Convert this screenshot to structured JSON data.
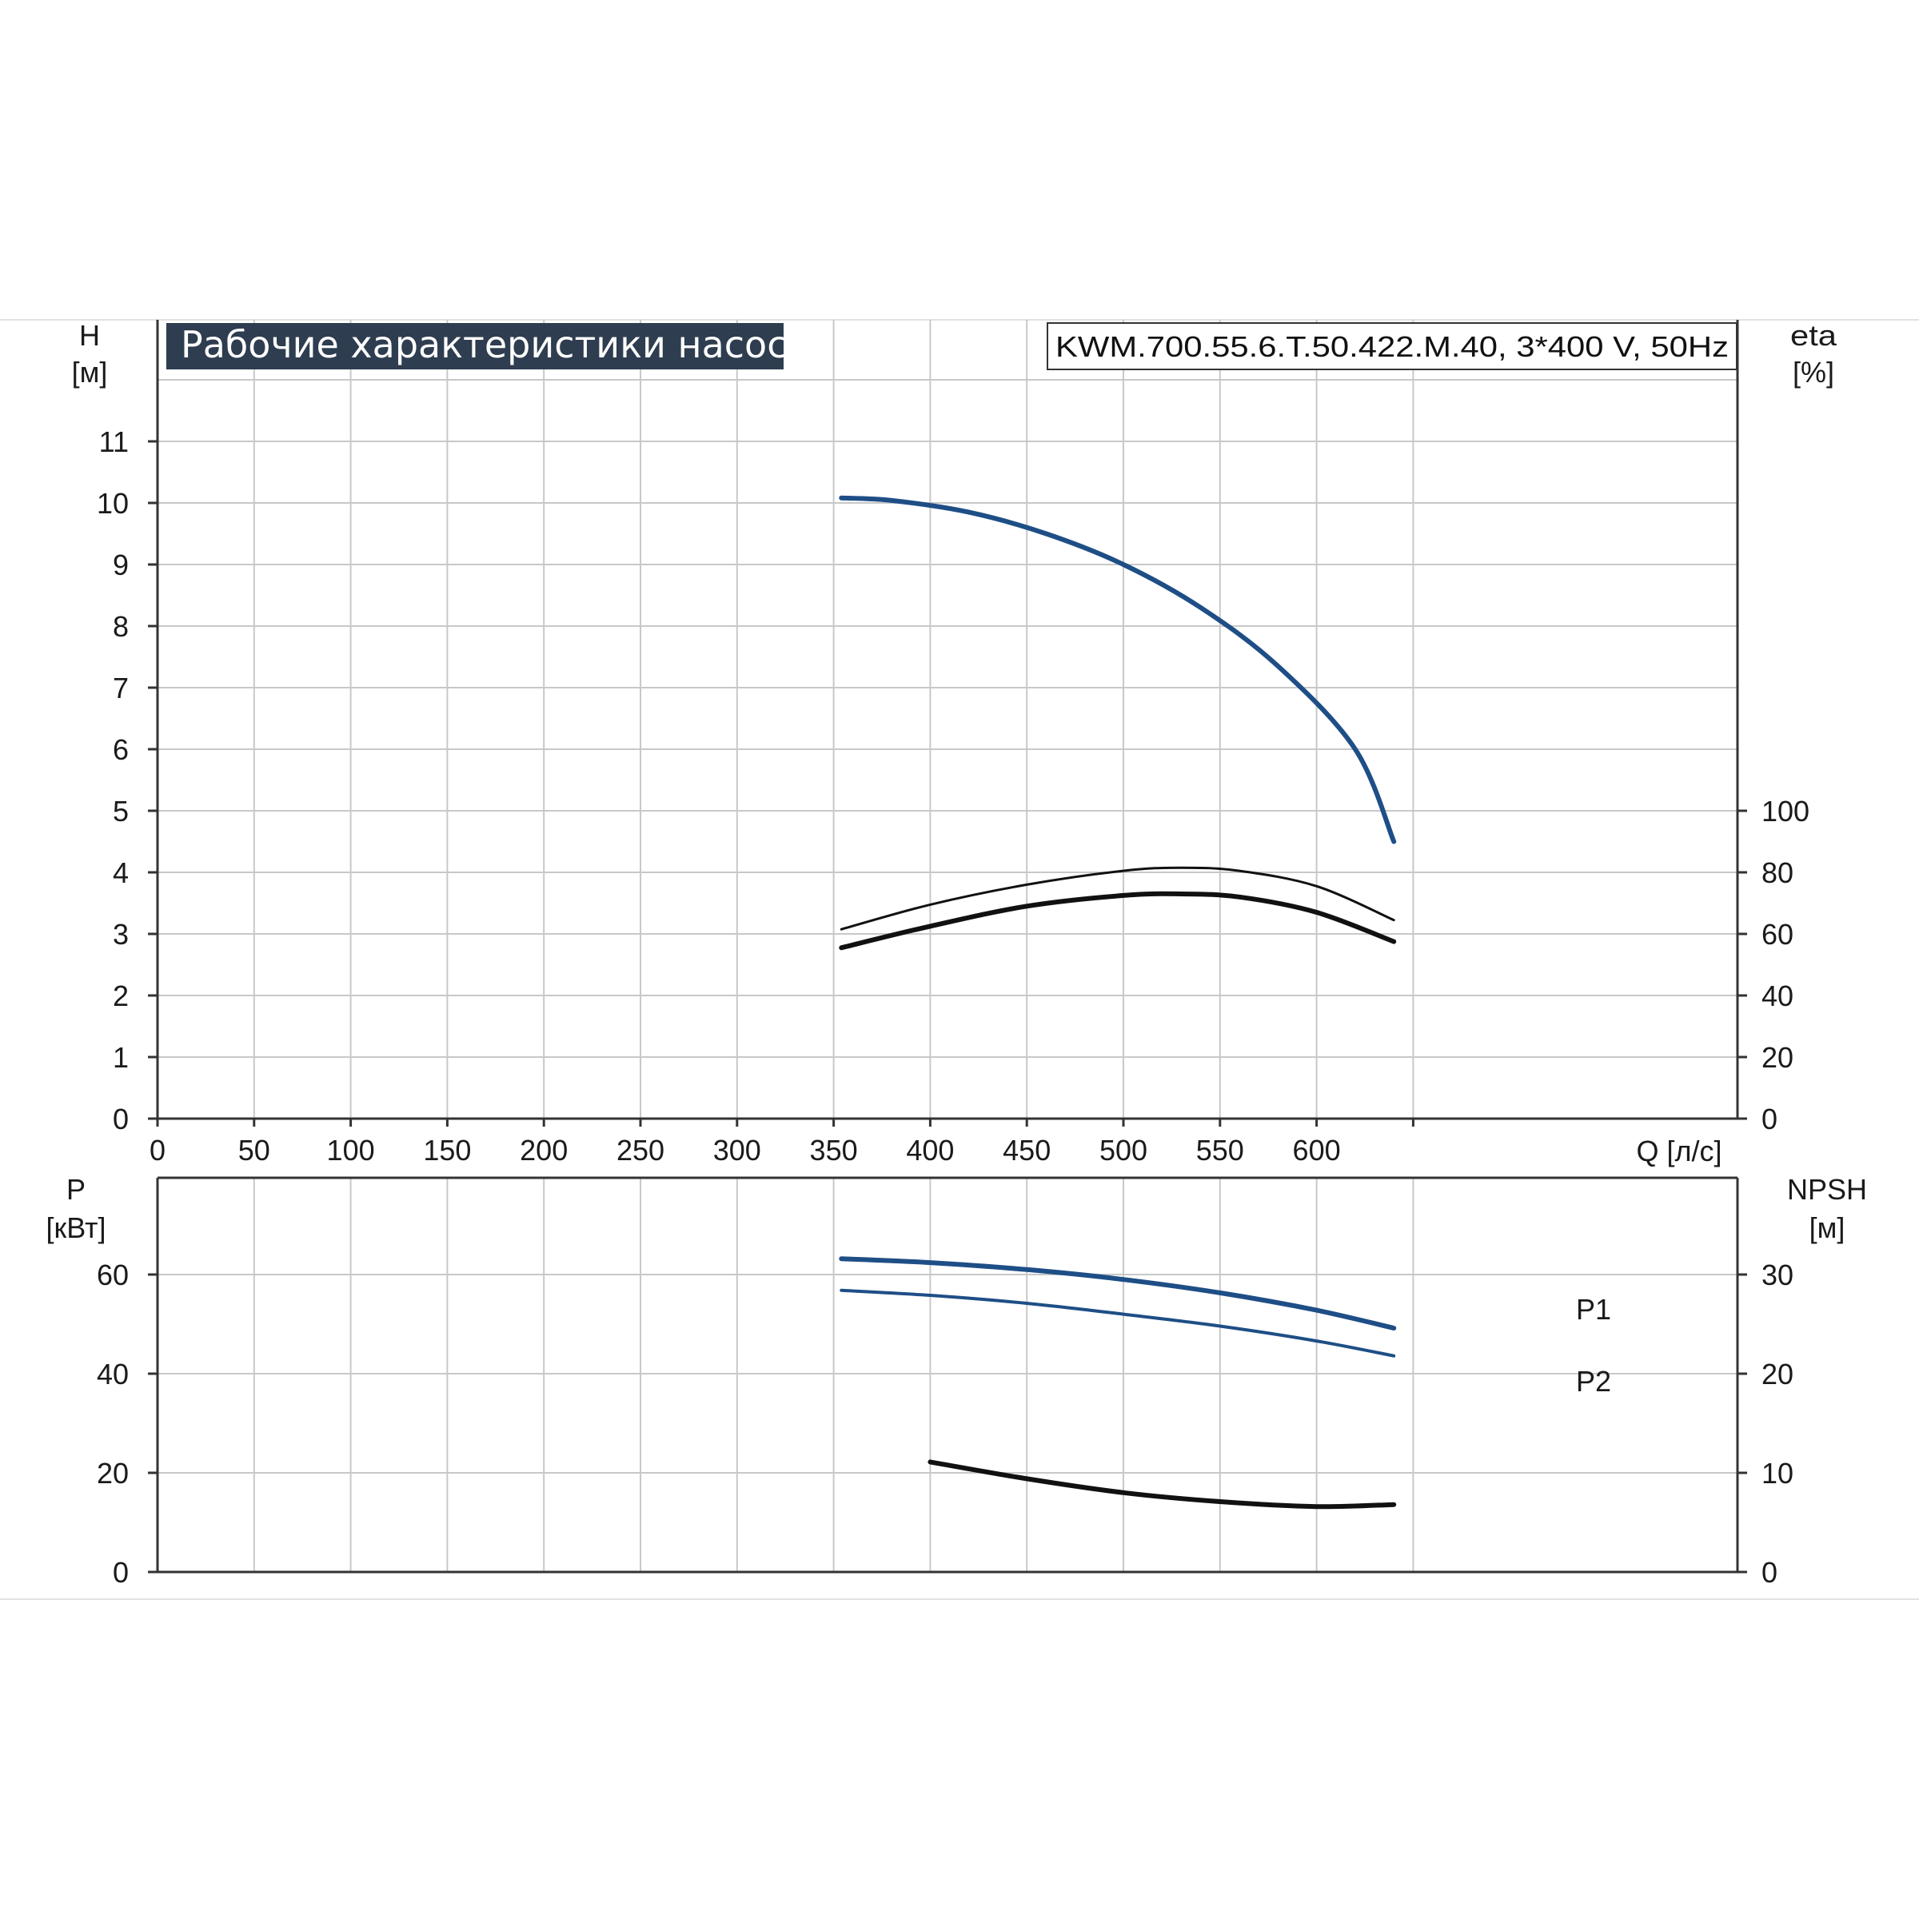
{
  "header": {
    "title": "Рабочие характеристики насоса",
    "model": "KWM.700.55.6.T.50.422.M.40, 3*400 V, 50Hz",
    "title_bg": "#2e3d4f"
  },
  "colors": {
    "blue": "#1e4e86",
    "black": "#111111",
    "grid": "#c8c8c8",
    "axis": "#333333"
  },
  "chart_data": [
    {
      "type": "line",
      "name": "head-efficiency",
      "xlabel": "Q [л/с]",
      "ylabel": [
        "H",
        "[м]"
      ],
      "y2label": [
        "eta",
        "[%]"
      ],
      "xlim": [
        0,
        700
      ],
      "ylim": [
        0,
        12
      ],
      "y2lim": [
        0,
        240
      ],
      "xticks": [
        "0",
        "50",
        "100",
        "150",
        "200",
        "250",
        "300",
        "350",
        "400",
        "450",
        "500",
        "550",
        "600"
      ],
      "xtick_values": [
        0,
        50,
        100,
        150,
        200,
        250,
        300,
        350,
        400,
        450,
        500,
        550,
        600
      ],
      "yticks": [
        "0",
        "1",
        "2",
        "3",
        "4",
        "5",
        "6",
        "7",
        "8",
        "9",
        "10",
        "11"
      ],
      "ytick_values": [
        0,
        1,
        2,
        3,
        4,
        5,
        6,
        7,
        8,
        9,
        10,
        11
      ],
      "y2ticks": [
        "0",
        "20",
        "40",
        "60",
        "80",
        "100"
      ],
      "y2tick_values": [
        0,
        20,
        40,
        60,
        80,
        100
      ],
      "grid": true,
      "series": [
        {
          "color": "#1e4e86",
          "width": 6,
          "axis": "y",
          "x": [
            354,
            380,
            420,
            460,
            500,
            540,
            580,
            620,
            640
          ],
          "y": [
            10.08,
            10.04,
            9.85,
            9.5,
            9.0,
            8.3,
            7.35,
            6.0,
            4.5
          ]
        },
        {
          "color": "#111111",
          "width": 3,
          "axis": "y2",
          "x": [
            354,
            400,
            450,
            500,
            530,
            560,
            600,
            640
          ],
          "y": [
            61.5,
            69.5,
            76.0,
            80.5,
            81.5,
            80.5,
            75.5,
            64.5
          ]
        },
        {
          "color": "#111111",
          "width": 6,
          "axis": "y2",
          "x": [
            354,
            400,
            450,
            500,
            530,
            560,
            600,
            640
          ],
          "y": [
            55.5,
            62.5,
            69.0,
            72.5,
            73.0,
            72.0,
            67.0,
            57.5
          ]
        }
      ]
    },
    {
      "type": "line",
      "name": "power-npsh",
      "ylabel": [
        "P",
        "[кВт]"
      ],
      "y2label": [
        "NPSH",
        "[м]"
      ],
      "xlim": [
        0,
        700
      ],
      "ylim": [
        0,
        80
      ],
      "y2lim": [
        0,
        40
      ],
      "yticks": [
        "0",
        "20",
        "40",
        "60"
      ],
      "ytick_values": [
        0,
        20,
        40,
        60
      ],
      "y2ticks": [
        "0",
        "10",
        "20",
        "30"
      ],
      "y2tick_values": [
        0,
        10,
        20,
        30
      ],
      "grid": true,
      "series": [
        {
          "name": "P1",
          "color": "#1e4e86",
          "width": 6,
          "axis": "y",
          "x": [
            354,
            400,
            450,
            500,
            550,
            600,
            640
          ],
          "y": [
            63.2,
            62.4,
            61.0,
            59.0,
            56.3,
            52.8,
            49.2
          ]
        },
        {
          "name": "P2",
          "color": "#1e4e86",
          "width": 4,
          "axis": "y",
          "x": [
            354,
            400,
            450,
            500,
            550,
            600,
            640
          ],
          "y": [
            56.8,
            55.8,
            54.2,
            52.0,
            49.6,
            46.6,
            43.6
          ]
        },
        {
          "color": "#111111",
          "width": 6,
          "axis": "y2",
          "x": [
            400,
            450,
            500,
            550,
            600,
            640
          ],
          "y": [
            11.1,
            9.4,
            8.0,
            7.1,
            6.6,
            6.8
          ]
        }
      ]
    }
  ]
}
